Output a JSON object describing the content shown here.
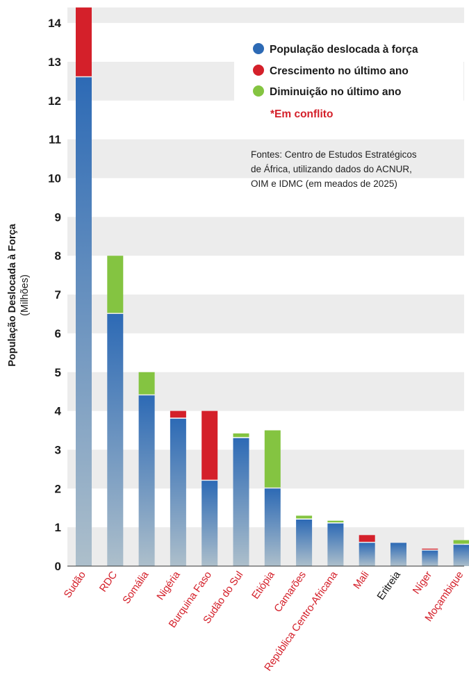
{
  "chart_data": {
    "type": "bar",
    "stacked": true,
    "ylabel": "População Deslocada à Força",
    "ylabel_unit": "(Milhões)",
    "ylim": [
      0,
      14.4
    ],
    "yticks": [
      0,
      1,
      2,
      3,
      4,
      5,
      6,
      7,
      8,
      9,
      10,
      11,
      12,
      13,
      14
    ],
    "grid": "alternating horizontal bands",
    "categories": [
      "Sudão",
      "RDC",
      "Somália",
      "Nigéria",
      "Burquina Faso",
      "Sudão do Sul",
      "Etiópia",
      "Camarões",
      "República Centro-Africana",
      "Mali",
      "Eritreia",
      "Níger",
      "Moçambique"
    ],
    "in_conflict": [
      true,
      true,
      true,
      true,
      true,
      true,
      true,
      true,
      true,
      true,
      false,
      true,
      true
    ],
    "series": [
      {
        "name": "População deslocada à força",
        "values": [
          12.6,
          6.5,
          4.4,
          3.8,
          2.2,
          3.3,
          2.0,
          1.2,
          1.1,
          0.6,
          0.6,
          0.4,
          0.55
        ]
      },
      {
        "name": "Crescimento no último ano",
        "values": [
          1.8,
          0,
          0,
          0.2,
          1.8,
          0,
          0,
          0,
          0,
          0.2,
          0,
          0.05,
          0
        ]
      },
      {
        "name": "Diminuição no último ano",
        "values": [
          0,
          1.5,
          0.6,
          0,
          0,
          0.12,
          1.5,
          0.1,
          0.07,
          0,
          0,
          0,
          0.12
        ]
      }
    ],
    "legend": {
      "placement": "top-right",
      "items": [
        {
          "label": "População deslocada à força",
          "color": "#2d6ab5"
        },
        {
          "label": "Crescimento no último ano",
          "color": "#d4202a"
        },
        {
          "label": "Diminuição no último ano",
          "color": "#84c441"
        }
      ],
      "conflict_note": "*Em conflito"
    },
    "source_lines": [
      "Fontes: Centro de Estudos Estratégicos",
      "de África, utilizando dados do ACNUR,",
      "OIM e IDMC (em meados de 2025)"
    ]
  },
  "colors": {
    "base_top": "#2d6ab5",
    "base_bottom": "#adbfcb",
    "growth": "#d4202a",
    "decrease": "#84c441",
    "conflict_label": "#d4202a",
    "no_conflict_label": "#111111",
    "band": "#ececec"
  }
}
